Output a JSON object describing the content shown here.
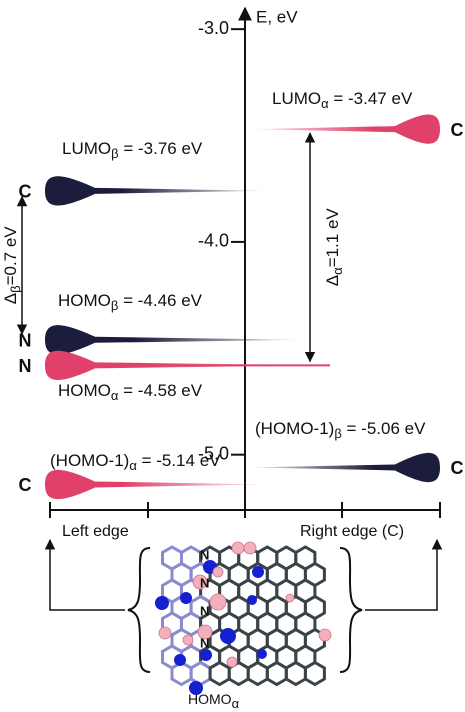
{
  "axis": {
    "label": "E, eV",
    "ylim": [
      -5.26,
      -2.91
    ],
    "yticks": [
      {
        "value": -3,
        "label": "-3.0"
      },
      {
        "value": -4,
        "label": "-4.0"
      },
      {
        "value": -5,
        "label": "-5.0"
      }
    ]
  },
  "levels": [
    {
      "name": "LUMO",
      "sub": "α",
      "text": " = -3.47 eV",
      "energy": -3.47,
      "side": "right",
      "edge": "C",
      "color": "#e0406a"
    },
    {
      "name": "LUMO",
      "sub": "β",
      "text": " = -3.76 eV",
      "energy": -3.76,
      "side": "left",
      "edge": "C",
      "color": "#1c1c3c"
    },
    {
      "name": "HOMO",
      "sub": "β",
      "text": " = -4.46 eV",
      "energy": -4.46,
      "side": "left",
      "edge": "N",
      "color": "#1c1c3c"
    },
    {
      "name": "HOMO",
      "sub": "α",
      "text": " = -4.58 eV",
      "energy": -4.58,
      "side": "left",
      "edge": "N",
      "color": "#e0406a"
    },
    {
      "name": "(HOMO-1)",
      "sub": "β",
      "text": " = -5.06 eV",
      "energy": -5.06,
      "side": "right",
      "edge": "C",
      "color": "#1c1c3c"
    },
    {
      "name": "(HOMO-1)",
      "sub": "α",
      "text": " = -5.14 eV",
      "energy": -5.14,
      "side": "left",
      "edge": "C",
      "color": "#e0406a"
    }
  ],
  "gaps": [
    {
      "symbol": "Δ",
      "sub": "β",
      "text": "=0.7 eV"
    },
    {
      "symbol": "Δ",
      "sub": "α",
      "text": "=1.1 eV"
    }
  ],
  "bottom": {
    "left": "Left edge",
    "right": "Right edge (C)",
    "molecule_label": "HOMO",
    "molecule_sub": "α",
    "atoms": [
      "N",
      "N",
      "N",
      "N"
    ]
  }
}
